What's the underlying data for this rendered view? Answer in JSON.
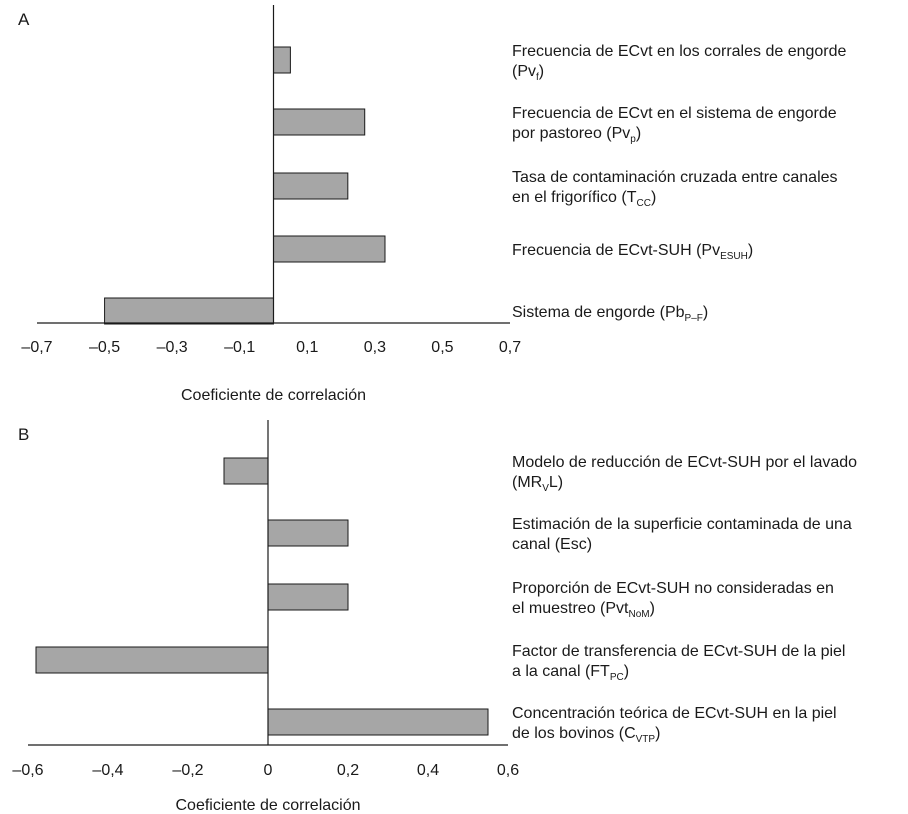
{
  "chart_data": [
    {
      "type": "bar",
      "orientation": "horizontal",
      "panel": "A",
      "xlabel": "Coeficiente de correlación",
      "ylabel": "",
      "xlim": [
        -0.7,
        0.7
      ],
      "xticks": [
        "–0,7",
        "–0,5",
        "–0,3",
        "–0,1",
        "0,1",
        "0,3",
        "0,5",
        "0,7"
      ],
      "grid": false,
      "categories": [
        {
          "lines": [
            [
              "Frecuencia de ECvt en los corrales de engorde"
            ],
            [
              "(Pv",
              {
                "sub": "f"
              },
              ")"
            ]
          ],
          "value": 0.05
        },
        {
          "lines": [
            [
              "Frecuencia de ECvt en el sistema de engorde"
            ],
            [
              "por pastoreo (Pv",
              {
                "sub": "p"
              },
              ")"
            ]
          ],
          "value": 0.27
        },
        {
          "lines": [
            [
              "Tasa de contaminación cruzada entre canales"
            ],
            [
              "en el frigorífico (T",
              {
                "sub": "CC"
              },
              ")"
            ]
          ],
          "value": 0.22
        },
        {
          "lines": [
            [
              "Frecuencia de ECvt-SUH (Pv",
              {
                "sub": "ESUH"
              },
              ")"
            ]
          ],
          "value": 0.33
        },
        {
          "lines": [
            [
              "Sistema de engorde (Pb",
              {
                "sub": "P–F"
              },
              ")"
            ]
          ],
          "value": -0.5
        }
      ]
    },
    {
      "type": "bar",
      "orientation": "horizontal",
      "panel": "B",
      "xlabel": "Coeficiente de correlación",
      "ylabel": "",
      "xlim": [
        -0.6,
        0.6
      ],
      "xticks": [
        "–0,6",
        "–0,4",
        "–0,2",
        "0",
        "0,2",
        "0,4",
        "0,6"
      ],
      "grid": false,
      "categories": [
        {
          "lines": [
            [
              "Modelo de reducción de ECvt-SUH por el lavado"
            ],
            [
              "(MR",
              {
                "sub": "V"
              },
              "L)"
            ]
          ],
          "value": -0.11
        },
        {
          "lines": [
            [
              "Estimación de la superficie contaminada de una"
            ],
            [
              "canal (Esc)"
            ]
          ],
          "value": 0.2
        },
        {
          "lines": [
            [
              "Proporción de ECvt-SUH no consideradas en"
            ],
            [
              "el muestreo (Pvt",
              {
                "sub": "NoM"
              },
              ")"
            ]
          ],
          "value": 0.2
        },
        {
          "lines": [
            [
              "Factor de transferencia de ECvt-SUH de la piel"
            ],
            [
              "a la canal (FT",
              {
                "sub": "PC"
              },
              ")"
            ]
          ],
          "value": -0.58
        },
        {
          "lines": [
            [
              "Concentración teórica de ECvt-SUH en la piel"
            ],
            [
              "de los bovinos (C",
              {
                "sub": "VTP"
              },
              ")"
            ]
          ],
          "value": 0.55
        }
      ]
    }
  ]
}
